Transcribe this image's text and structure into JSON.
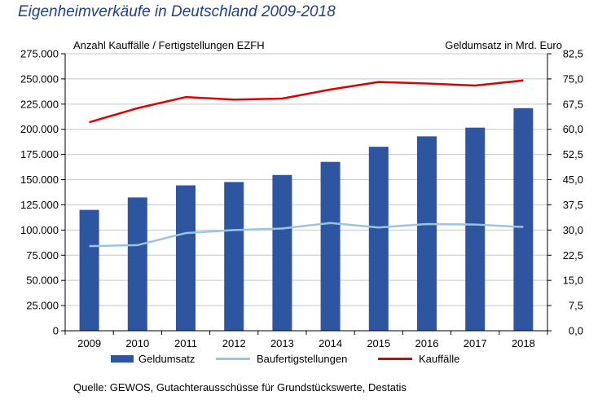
{
  "chart_data": {
    "type": "bar+line",
    "title": "Eigenheimverkäufe in Deutschland 2009-2018",
    "left_axis_title": "Anzahl Kauffälle / Fertigstellungen EZFH",
    "right_axis_title": "Geldumsatz in Mrd. Euro",
    "categories": [
      "2009",
      "2010",
      "2011",
      "2012",
      "2013",
      "2014",
      "2015",
      "2016",
      "2017",
      "2018"
    ],
    "left_ylim": [
      0,
      275000
    ],
    "left_ticks": [
      "0",
      "25.000",
      "50.000",
      "75.000",
      "100.000",
      "125.000",
      "150.000",
      "175.000",
      "200.000",
      "225.000",
      "250.000",
      "275.000"
    ],
    "right_ylim": [
      0,
      82.5
    ],
    "right_ticks": [
      "0,0",
      "7,5",
      "15,0",
      "22,5",
      "30,0",
      "37,5",
      "45,0",
      "52,5",
      "60,0",
      "67,5",
      "75,0",
      "82,5"
    ],
    "series": [
      {
        "name": "Geldumsatz",
        "axis": "right",
        "kind": "bar",
        "color": "#2e55a0",
        "values": [
          36.0,
          39.7,
          43.3,
          44.3,
          46.4,
          50.3,
          54.8,
          57.9,
          60.5,
          66.3
        ]
      },
      {
        "name": "Baufertigstellungen",
        "axis": "left",
        "kind": "line",
        "color": "#9cc3e4",
        "values": [
          84000,
          85000,
          97000,
          100000,
          101500,
          107000,
          102500,
          106000,
          105500,
          103000
        ]
      },
      {
        "name": "Kauffälle",
        "axis": "left",
        "kind": "line",
        "color": "#e00000",
        "values": [
          207000,
          221000,
          232000,
          229500,
          230500,
          239500,
          247000,
          245500,
          243500,
          248500
        ]
      }
    ],
    "legend_position": "bottom",
    "grid": "horizontal"
  },
  "source_text": "Quelle: GEWOS, Gutachterausschüsse für Grundstückswerte, Destatis"
}
